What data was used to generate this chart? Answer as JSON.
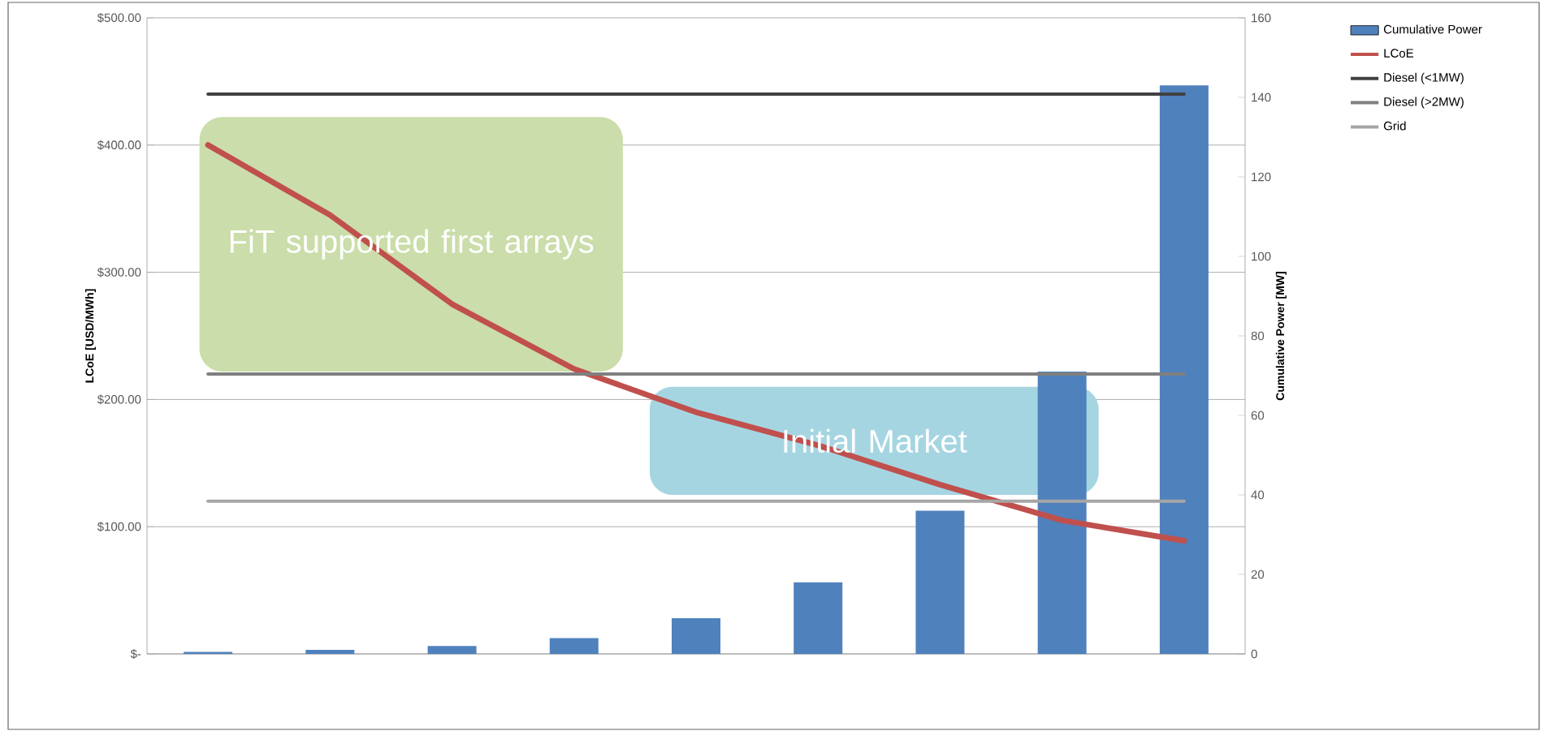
{
  "chart_data": {
    "type": "bar",
    "categories": [
      null,
      null,
      null,
      null,
      null,
      null,
      null,
      null,
      null
    ],
    "ylabel": "LCoE [USD/MWh]",
    "y2label": "Cumulative Power [MW]",
    "ylim": [
      0,
      500
    ],
    "yticks": [
      {
        "value": 0,
        "label": "$-"
      },
      {
        "value": 100,
        "label": "$100.00"
      },
      {
        "value": 200,
        "label": "$200.00"
      },
      {
        "value": 300,
        "label": "$300.00"
      },
      {
        "value": 400,
        "label": "$400.00"
      },
      {
        "value": 500,
        "label": "$500.00"
      }
    ],
    "y2lim": [
      0,
      160
    ],
    "y2ticks": [
      0,
      20,
      40,
      60,
      80,
      100,
      120,
      140,
      160
    ],
    "grid": "y",
    "legend": "top right",
    "series": [
      {
        "name": "Cumulative Power",
        "axis": "y2",
        "color": "#4f81bd",
        "values": [
          0.5,
          1,
          2,
          4,
          9,
          18,
          36,
          71,
          143
        ]
      },
      {
        "name": "LCoE",
        "type": "line",
        "color": "#c0504d",
        "values": [
          400,
          345,
          275,
          224,
          190,
          164,
          133,
          105,
          89
        ]
      },
      {
        "name": "Diesel (<1MW)",
        "type": "line",
        "color": "#404040",
        "values": [
          440,
          440,
          440,
          440,
          440,
          440,
          440,
          440,
          440
        ]
      },
      {
        "name": "Diesel (>2MW)",
        "type": "line",
        "color": "#7f7f7f",
        "values": [
          220,
          220,
          220,
          220,
          220,
          220,
          220,
          220,
          220
        ]
      },
      {
        "name": "Grid",
        "type": "line",
        "color": "#a6a6a6",
        "values": [
          120,
          120,
          120,
          120,
          120,
          120,
          120,
          120,
          120
        ]
      }
    ],
    "bands": [
      {
        "axis": "y",
        "from": 222,
        "to": 422,
        "label": "FiT supported first arrays",
        "color": "#cbddaa"
      },
      {
        "axis": "y",
        "from": 125,
        "to": 210,
        "label": "Initial Market",
        "color": "#a6d5e2"
      }
    ]
  }
}
